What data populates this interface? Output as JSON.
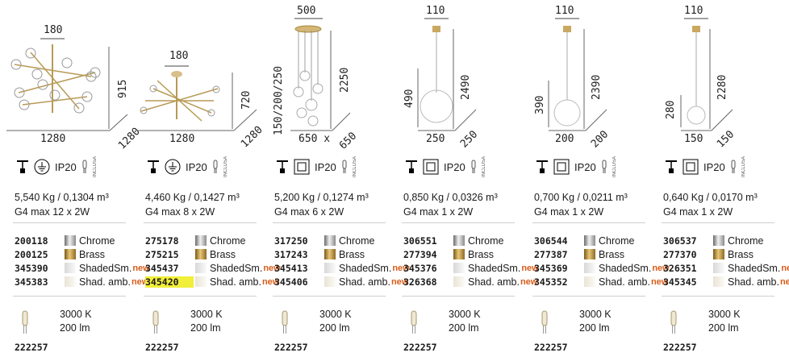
{
  "ip_label": "IP20",
  "inclusa_label": "INCLUSA",
  "new_label": "new",
  "products": [
    {
      "dims": {
        "top": "180",
        "height": "915",
        "depth": "1280",
        "width": "1280"
      },
      "weight": "5,540 Kg / 0,1304 m³",
      "bulb": "G4 max 12 x 2W",
      "codes": [
        {
          "code": "200118",
          "finish": "Chrome",
          "swatch": "chrome",
          "new": false,
          "hl": false
        },
        {
          "code": "200125",
          "finish": "Brass",
          "swatch": "brass",
          "new": false,
          "hl": false
        },
        {
          "code": "345390",
          "finish": "ShadedSm.",
          "swatch": "shaded",
          "new": true,
          "hl": false
        },
        {
          "code": "345383",
          "finish": "Shad. amb.",
          "swatch": "amb",
          "new": true,
          "hl": false
        }
      ],
      "kelvin": "3000 K",
      "lumen": "200 lm",
      "bulb_code": "222257"
    },
    {
      "dims": {
        "top": "180",
        "height": "720",
        "depth": "1280",
        "width": "1280"
      },
      "weight": "4,460 Kg / 0,1427 m³",
      "bulb": "G4 max 8 x 2W",
      "codes": [
        {
          "code": "275178",
          "finish": "Chrome",
          "swatch": "chrome",
          "new": false,
          "hl": false
        },
        {
          "code": "275215",
          "finish": "Brass",
          "swatch": "brass",
          "new": false,
          "hl": false
        },
        {
          "code": "345437",
          "finish": "ShadedSm.",
          "swatch": "shaded",
          "new": true,
          "hl": false
        },
        {
          "code": "345420",
          "finish": "Shad. amb.",
          "swatch": "amb",
          "new": true,
          "hl": true
        }
      ],
      "kelvin": "3000 K",
      "lumen": "200 lm",
      "bulb_code": "222257"
    },
    {
      "dims": {
        "top": "500",
        "height": "2250",
        "drop": "150/200/250",
        "depth": "650",
        "width": "650 x"
      },
      "weight": "5,200 Kg / 0,1274 m³",
      "bulb": "G4 max 6 x 2W",
      "codes": [
        {
          "code": "317250",
          "finish": "Chrome",
          "swatch": "chrome",
          "new": false,
          "hl": false
        },
        {
          "code": "317243",
          "finish": "Brass",
          "swatch": "brass",
          "new": false,
          "hl": false
        },
        {
          "code": "345413",
          "finish": "ShadedSm.",
          "swatch": "shaded",
          "new": true,
          "hl": false
        },
        {
          "code": "345406",
          "finish": "Shad. amb.",
          "swatch": "amb",
          "new": true,
          "hl": false
        }
      ],
      "kelvin": "3000 K",
      "lumen": "200 lm",
      "bulb_code": "222257"
    },
    {
      "dims": {
        "top": "110",
        "height": "2490",
        "globe": "490",
        "depth": "250",
        "width": "250"
      },
      "weight": "0,850 Kg / 0,0326 m³",
      "bulb": "G4 max 1 x 2W",
      "codes": [
        {
          "code": "306551",
          "finish": "Chrome",
          "swatch": "chrome",
          "new": false,
          "hl": false
        },
        {
          "code": "277394",
          "finish": "Brass",
          "swatch": "brass",
          "new": false,
          "hl": false
        },
        {
          "code": "345376",
          "finish": "ShadedSm.",
          "swatch": "shaded",
          "new": true,
          "hl": false
        },
        {
          "code": "326368",
          "finish": "Shad. amb.",
          "swatch": "amb",
          "new": true,
          "hl": false
        }
      ],
      "kelvin": "3000 K",
      "lumen": "200 lm",
      "bulb_code": "222257"
    },
    {
      "dims": {
        "top": "110",
        "height": "2390",
        "globe": "390",
        "depth": "200",
        "width": "200"
      },
      "weight": "0,700 Kg / 0,0211 m³",
      "bulb": "G4 max 1 x 2W",
      "codes": [
        {
          "code": "306544",
          "finish": "Chrome",
          "swatch": "chrome",
          "new": false,
          "hl": false
        },
        {
          "code": "277387",
          "finish": "Brass",
          "swatch": "brass",
          "new": false,
          "hl": false
        },
        {
          "code": "345369",
          "finish": "ShadedSm.",
          "swatch": "shaded",
          "new": true,
          "hl": false
        },
        {
          "code": "345352",
          "finish": "Shad. amb.",
          "swatch": "amb",
          "new": true,
          "hl": false
        }
      ],
      "kelvin": "3000 K",
      "lumen": "200 lm",
      "bulb_code": "222257"
    },
    {
      "dims": {
        "top": "110",
        "height": "2280",
        "globe": "280",
        "depth": "150",
        "width": "150"
      },
      "weight": "0,640 Kg / 0,0170 m³",
      "bulb": "G4 max 1 x 2W",
      "codes": [
        {
          "code": "306537",
          "finish": "Chrome",
          "swatch": "chrome",
          "new": false,
          "hl": false
        },
        {
          "code": "277370",
          "finish": "Brass",
          "swatch": "brass",
          "new": false,
          "hl": false
        },
        {
          "code": "326351",
          "finish": "ShadedSm.",
          "swatch": "shaded",
          "new": true,
          "hl": false
        },
        {
          "code": "345345",
          "finish": "Shad. amb.",
          "swatch": "amb",
          "new": true,
          "hl": false
        }
      ],
      "kelvin": "3000 K",
      "lumen": "200 lm",
      "bulb_code": "222257"
    }
  ]
}
